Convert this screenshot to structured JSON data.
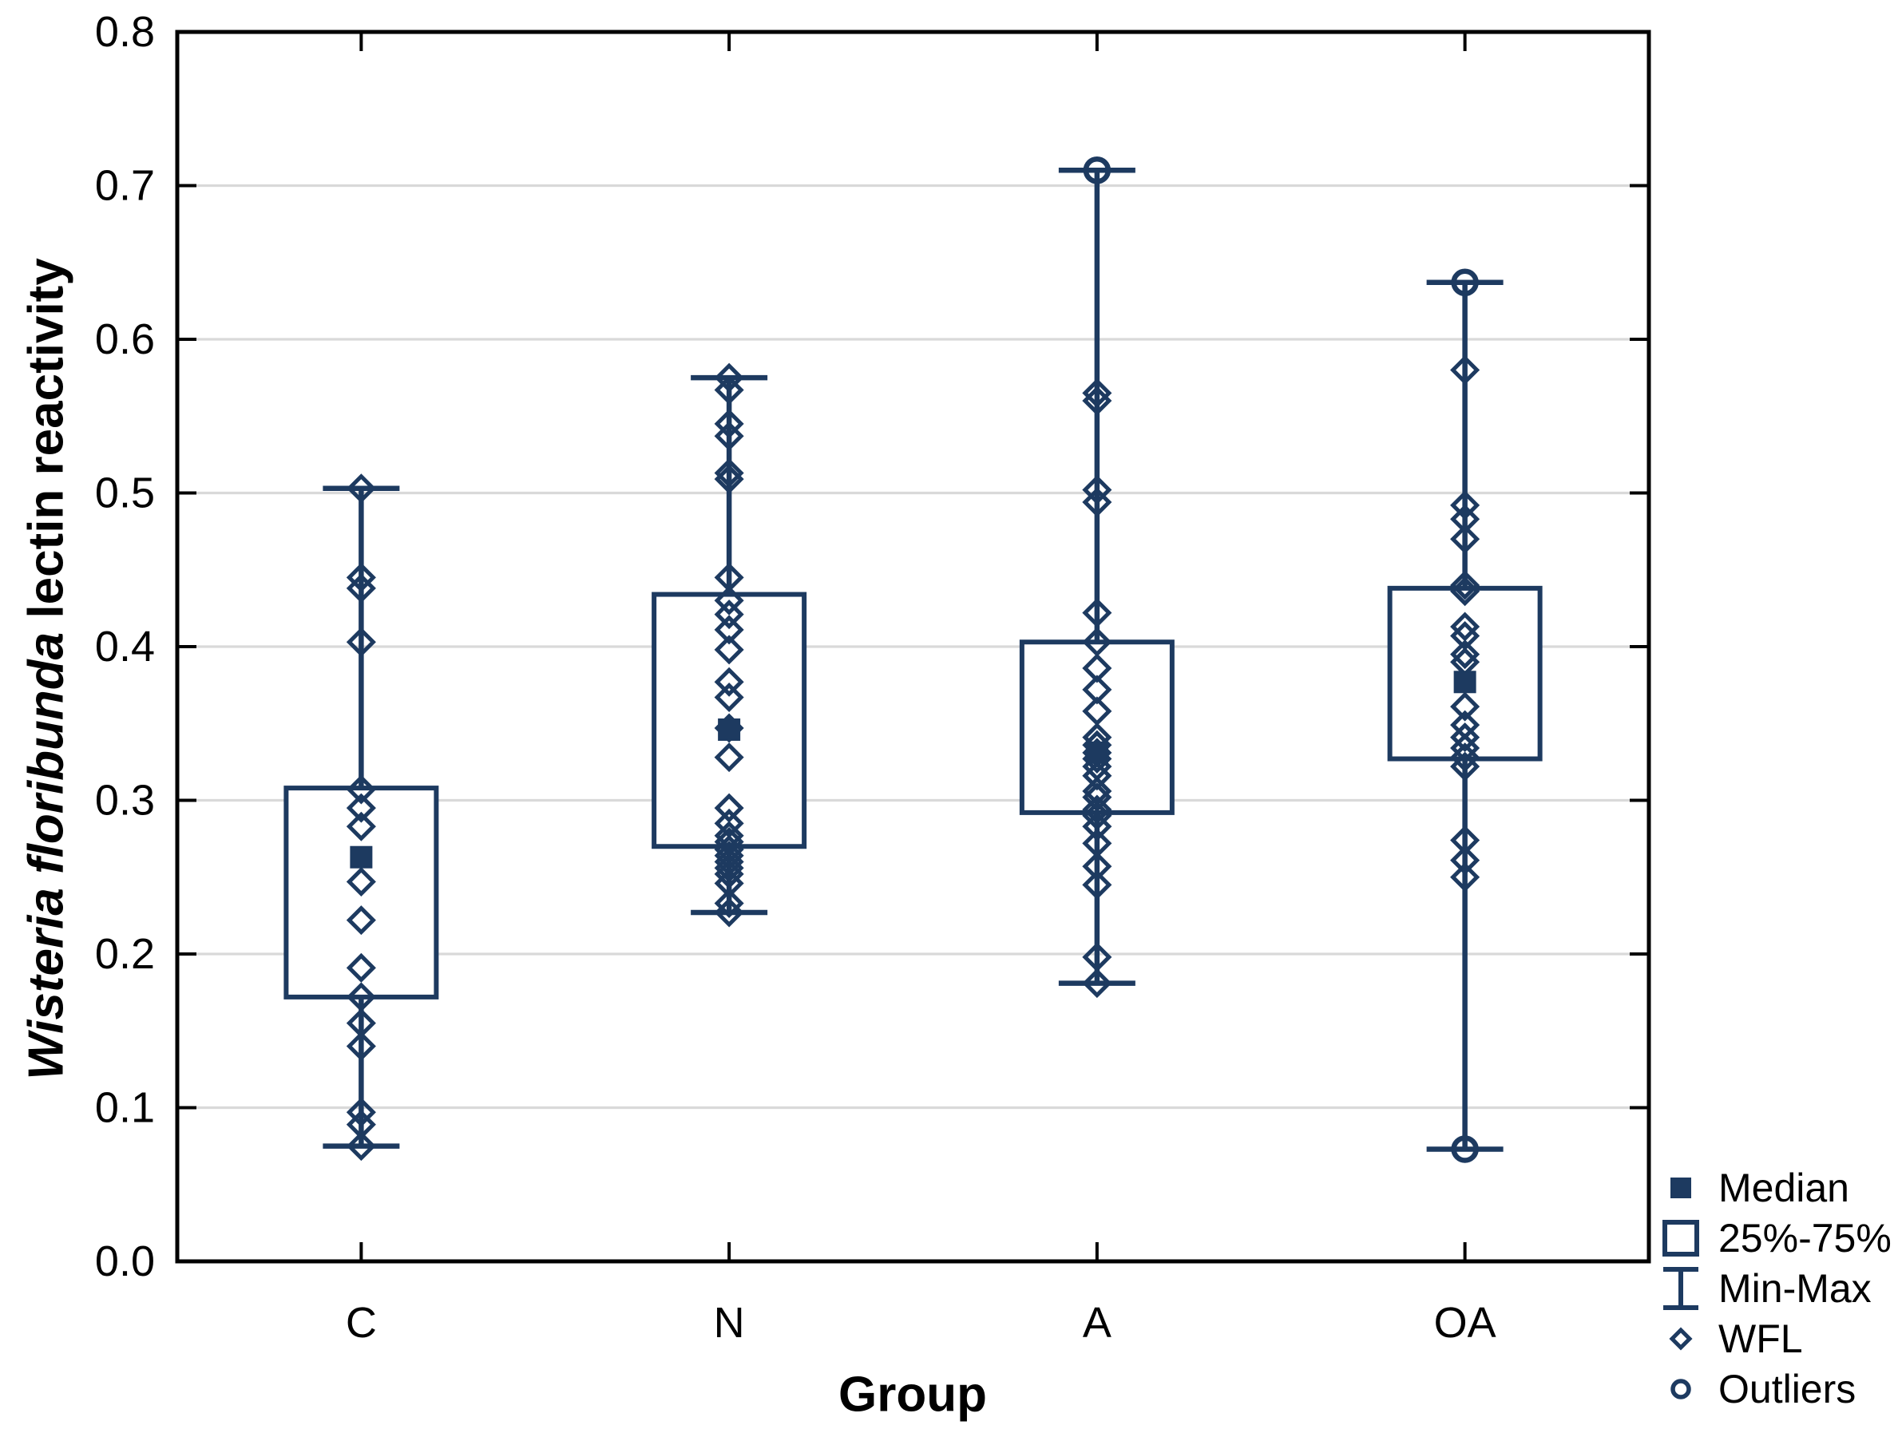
{
  "figure": {
    "ylabel_italic": "Wisteria floribunda",
    "ylabel_regular": " lectin reactivity",
    "xlabel": "Group"
  },
  "colors": {
    "series": "#1d3a60",
    "grid": "#d9d9d9",
    "axis": "#000000",
    "background": "#ffffff",
    "text": "#000000"
  },
  "chart_data": {
    "type": "boxplot",
    "title": "",
    "xlabel": "Group",
    "ylabel": "Wisteria floribunda lectin reactivity",
    "ylim": [
      0.0,
      0.8
    ],
    "yticks": [
      0.0,
      0.1,
      0.2,
      0.3,
      0.4,
      0.5,
      0.6,
      0.7,
      0.8
    ],
    "ytick_labels": [
      "0.0",
      "0.1",
      "0.2",
      "0.3",
      "0.4",
      "0.5",
      "0.6",
      "0.7",
      "0.8"
    ],
    "grid": "horizontal",
    "legend_position": "bottom-right",
    "legend": [
      {
        "symbol": "median-square",
        "label": "Median"
      },
      {
        "symbol": "box",
        "label": "25%-75%"
      },
      {
        "symbol": "whisker",
        "label": "Min-Max"
      },
      {
        "symbol": "diamond",
        "label": "WFL"
      },
      {
        "symbol": "circle",
        "label": "Outliers"
      }
    ],
    "groups": [
      {
        "label": "C",
        "median": 0.263,
        "q1": 0.172,
        "q3": 0.308,
        "min": 0.075,
        "max": 0.503,
        "points": [
          0.503,
          0.445,
          0.438,
          0.403,
          0.307,
          0.295,
          0.283,
          0.247,
          0.222,
          0.191,
          0.172,
          0.155,
          0.14,
          0.097,
          0.089,
          0.075
        ],
        "outliers": []
      },
      {
        "label": "N",
        "median": 0.346,
        "q1": 0.27,
        "q3": 0.434,
        "min": 0.227,
        "max": 0.575,
        "points": [
          0.575,
          0.567,
          0.545,
          0.537,
          0.513,
          0.509,
          0.445,
          0.43,
          0.421,
          0.411,
          0.398,
          0.377,
          0.367,
          0.347,
          0.328,
          0.295,
          0.285,
          0.277,
          0.273,
          0.268,
          0.264,
          0.26,
          0.256,
          0.252,
          0.246,
          0.233,
          0.227
        ],
        "outliers": []
      },
      {
        "label": "A",
        "median": 0.331,
        "q1": 0.292,
        "q3": 0.403,
        "min": 0.181,
        "max": 0.71,
        "points": [
          0.565,
          0.56,
          0.502,
          0.494,
          0.422,
          0.403,
          0.386,
          0.372,
          0.358,
          0.341,
          0.336,
          0.331,
          0.327,
          0.322,
          0.316,
          0.306,
          0.302,
          0.294,
          0.29,
          0.283,
          0.272,
          0.257,
          0.245,
          0.198,
          0.181
        ],
        "outliers": [
          0.71
        ]
      },
      {
        "label": "OA",
        "median": 0.377,
        "q1": 0.327,
        "q3": 0.438,
        "min": 0.073,
        "max": 0.637,
        "points": [
          0.58,
          0.492,
          0.483,
          0.47,
          0.44,
          0.436,
          0.413,
          0.407,
          0.395,
          0.39,
          0.361,
          0.349,
          0.341,
          0.334,
          0.328,
          0.322,
          0.274,
          0.261,
          0.25
        ],
        "outliers": [
          0.637,
          0.073
        ]
      }
    ]
  }
}
